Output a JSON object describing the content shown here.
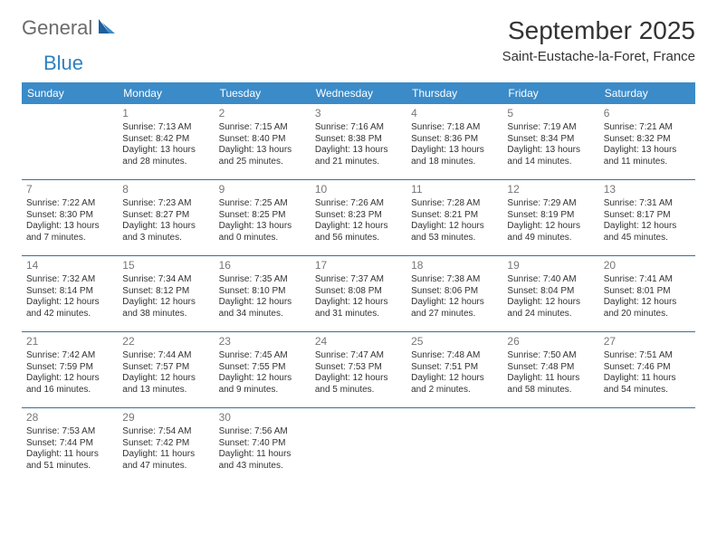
{
  "logo": {
    "part1": "General",
    "part2": "Blue"
  },
  "title": "September 2025",
  "location": "Saint-Eustache-la-Foret, France",
  "colors": {
    "header_bg": "#3b8bc8",
    "header_fg": "#ffffff",
    "row_border": "#3b6f96",
    "daynum": "#777777",
    "logo_gray": "#6b6b6b",
    "logo_blue": "#2f7fc2"
  },
  "day_headers": [
    "Sunday",
    "Monday",
    "Tuesday",
    "Wednesday",
    "Thursday",
    "Friday",
    "Saturday"
  ],
  "weeks": [
    [
      {
        "n": "",
        "sr": "",
        "ss": "",
        "dl": ""
      },
      {
        "n": "1",
        "sr": "Sunrise: 7:13 AM",
        "ss": "Sunset: 8:42 PM",
        "dl": "Daylight: 13 hours and 28 minutes."
      },
      {
        "n": "2",
        "sr": "Sunrise: 7:15 AM",
        "ss": "Sunset: 8:40 PM",
        "dl": "Daylight: 13 hours and 25 minutes."
      },
      {
        "n": "3",
        "sr": "Sunrise: 7:16 AM",
        "ss": "Sunset: 8:38 PM",
        "dl": "Daylight: 13 hours and 21 minutes."
      },
      {
        "n": "4",
        "sr": "Sunrise: 7:18 AM",
        "ss": "Sunset: 8:36 PM",
        "dl": "Daylight: 13 hours and 18 minutes."
      },
      {
        "n": "5",
        "sr": "Sunrise: 7:19 AM",
        "ss": "Sunset: 8:34 PM",
        "dl": "Daylight: 13 hours and 14 minutes."
      },
      {
        "n": "6",
        "sr": "Sunrise: 7:21 AM",
        "ss": "Sunset: 8:32 PM",
        "dl": "Daylight: 13 hours and 11 minutes."
      }
    ],
    [
      {
        "n": "7",
        "sr": "Sunrise: 7:22 AM",
        "ss": "Sunset: 8:30 PM",
        "dl": "Daylight: 13 hours and 7 minutes."
      },
      {
        "n": "8",
        "sr": "Sunrise: 7:23 AM",
        "ss": "Sunset: 8:27 PM",
        "dl": "Daylight: 13 hours and 3 minutes."
      },
      {
        "n": "9",
        "sr": "Sunrise: 7:25 AM",
        "ss": "Sunset: 8:25 PM",
        "dl": "Daylight: 13 hours and 0 minutes."
      },
      {
        "n": "10",
        "sr": "Sunrise: 7:26 AM",
        "ss": "Sunset: 8:23 PM",
        "dl": "Daylight: 12 hours and 56 minutes."
      },
      {
        "n": "11",
        "sr": "Sunrise: 7:28 AM",
        "ss": "Sunset: 8:21 PM",
        "dl": "Daylight: 12 hours and 53 minutes."
      },
      {
        "n": "12",
        "sr": "Sunrise: 7:29 AM",
        "ss": "Sunset: 8:19 PM",
        "dl": "Daylight: 12 hours and 49 minutes."
      },
      {
        "n": "13",
        "sr": "Sunrise: 7:31 AM",
        "ss": "Sunset: 8:17 PM",
        "dl": "Daylight: 12 hours and 45 minutes."
      }
    ],
    [
      {
        "n": "14",
        "sr": "Sunrise: 7:32 AM",
        "ss": "Sunset: 8:14 PM",
        "dl": "Daylight: 12 hours and 42 minutes."
      },
      {
        "n": "15",
        "sr": "Sunrise: 7:34 AM",
        "ss": "Sunset: 8:12 PM",
        "dl": "Daylight: 12 hours and 38 minutes."
      },
      {
        "n": "16",
        "sr": "Sunrise: 7:35 AM",
        "ss": "Sunset: 8:10 PM",
        "dl": "Daylight: 12 hours and 34 minutes."
      },
      {
        "n": "17",
        "sr": "Sunrise: 7:37 AM",
        "ss": "Sunset: 8:08 PM",
        "dl": "Daylight: 12 hours and 31 minutes."
      },
      {
        "n": "18",
        "sr": "Sunrise: 7:38 AM",
        "ss": "Sunset: 8:06 PM",
        "dl": "Daylight: 12 hours and 27 minutes."
      },
      {
        "n": "19",
        "sr": "Sunrise: 7:40 AM",
        "ss": "Sunset: 8:04 PM",
        "dl": "Daylight: 12 hours and 24 minutes."
      },
      {
        "n": "20",
        "sr": "Sunrise: 7:41 AM",
        "ss": "Sunset: 8:01 PM",
        "dl": "Daylight: 12 hours and 20 minutes."
      }
    ],
    [
      {
        "n": "21",
        "sr": "Sunrise: 7:42 AM",
        "ss": "Sunset: 7:59 PM",
        "dl": "Daylight: 12 hours and 16 minutes."
      },
      {
        "n": "22",
        "sr": "Sunrise: 7:44 AM",
        "ss": "Sunset: 7:57 PM",
        "dl": "Daylight: 12 hours and 13 minutes."
      },
      {
        "n": "23",
        "sr": "Sunrise: 7:45 AM",
        "ss": "Sunset: 7:55 PM",
        "dl": "Daylight: 12 hours and 9 minutes."
      },
      {
        "n": "24",
        "sr": "Sunrise: 7:47 AM",
        "ss": "Sunset: 7:53 PM",
        "dl": "Daylight: 12 hours and 5 minutes."
      },
      {
        "n": "25",
        "sr": "Sunrise: 7:48 AM",
        "ss": "Sunset: 7:51 PM",
        "dl": "Daylight: 12 hours and 2 minutes."
      },
      {
        "n": "26",
        "sr": "Sunrise: 7:50 AM",
        "ss": "Sunset: 7:48 PM",
        "dl": "Daylight: 11 hours and 58 minutes."
      },
      {
        "n": "27",
        "sr": "Sunrise: 7:51 AM",
        "ss": "Sunset: 7:46 PM",
        "dl": "Daylight: 11 hours and 54 minutes."
      }
    ],
    [
      {
        "n": "28",
        "sr": "Sunrise: 7:53 AM",
        "ss": "Sunset: 7:44 PM",
        "dl": "Daylight: 11 hours and 51 minutes."
      },
      {
        "n": "29",
        "sr": "Sunrise: 7:54 AM",
        "ss": "Sunset: 7:42 PM",
        "dl": "Daylight: 11 hours and 47 minutes."
      },
      {
        "n": "30",
        "sr": "Sunrise: 7:56 AM",
        "ss": "Sunset: 7:40 PM",
        "dl": "Daylight: 11 hours and 43 minutes."
      },
      {
        "n": "",
        "sr": "",
        "ss": "",
        "dl": ""
      },
      {
        "n": "",
        "sr": "",
        "ss": "",
        "dl": ""
      },
      {
        "n": "",
        "sr": "",
        "ss": "",
        "dl": ""
      },
      {
        "n": "",
        "sr": "",
        "ss": "",
        "dl": ""
      }
    ]
  ]
}
